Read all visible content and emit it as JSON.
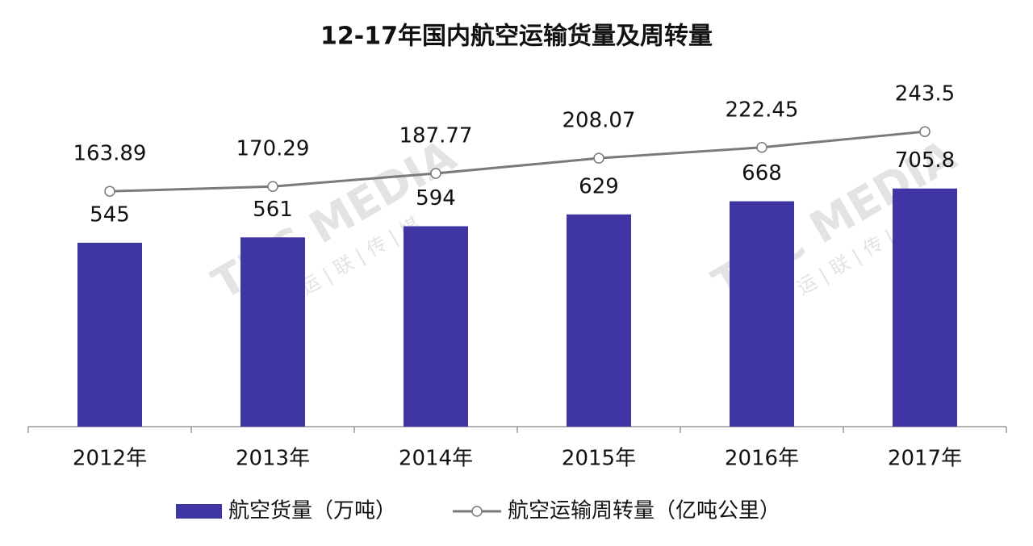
{
  "chart_data": {
    "type": "bar-line",
    "title": "12-17年国内航空运输货量及周转量",
    "categories": [
      "2012年",
      "2013年",
      "2014年",
      "2015年",
      "2016年",
      "2017年"
    ],
    "series": [
      {
        "name": "航空货量（万吨）",
        "type": "bar",
        "color": "#4036a3",
        "values": [
          545,
          561,
          594,
          629,
          668,
          705.8
        ]
      },
      {
        "name": "航空运输周转量（亿吨公里）",
        "type": "line",
        "axis": "y2",
        "color": "#7a7a7a",
        "values": [
          163.89,
          170.29,
          187.77,
          208.07,
          222.45,
          243.5
        ]
      }
    ],
    "ylim": [
      0,
      1200
    ],
    "y2lim": [
      -150,
      390
    ],
    "legend": "bottom",
    "watermark": {
      "text": "TUC MEDIA",
      "subtext": "运 | 联 | 传 | 媒"
    }
  }
}
